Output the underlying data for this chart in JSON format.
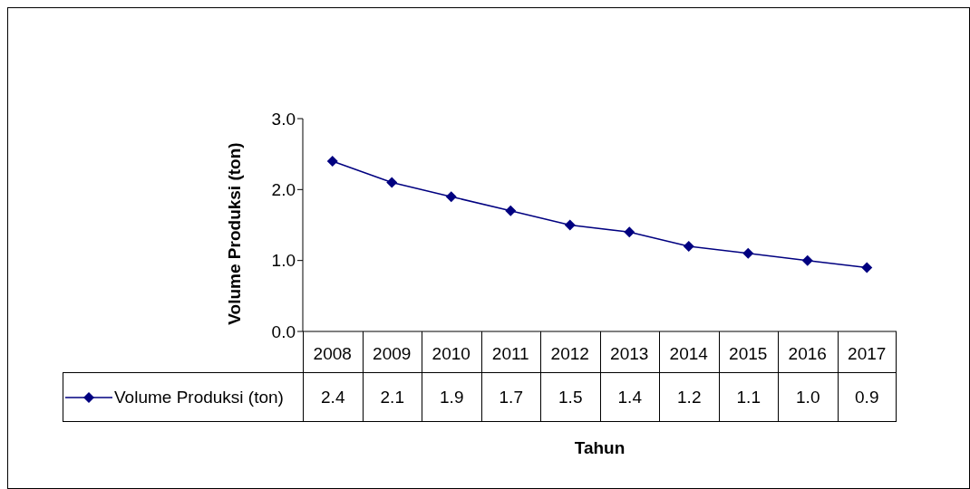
{
  "chart_data": {
    "type": "line",
    "xlabel": "Tahun",
    "ylabel": "Volume Produksi (ton)",
    "categories": [
      "2008",
      "2009",
      "2010",
      "2011",
      "2012",
      "2013",
      "2014",
      "2015",
      "2016",
      "2017"
    ],
    "series": [
      {
        "name": "Volume Produksi (ton)",
        "color": "#000080",
        "values": [
          2.4,
          2.1,
          1.9,
          1.7,
          1.5,
          1.4,
          1.2,
          1.1,
          1.0,
          0.9
        ],
        "value_labels": [
          "2.4",
          "2.1",
          "1.9",
          "1.7",
          "1.5",
          "1.4",
          "1.2",
          "1.1",
          "1.0",
          "0.9"
        ]
      }
    ],
    "ylim": [
      0,
      3
    ],
    "yticks": [
      {
        "value": 0,
        "label": "0.0"
      },
      {
        "value": 1,
        "label": "1.0"
      },
      {
        "value": 2,
        "label": "2.0"
      },
      {
        "value": 3,
        "label": "3.0"
      }
    ],
    "grid": false,
    "legend": "bottom",
    "marker": "diamond",
    "line_style": "solid"
  }
}
